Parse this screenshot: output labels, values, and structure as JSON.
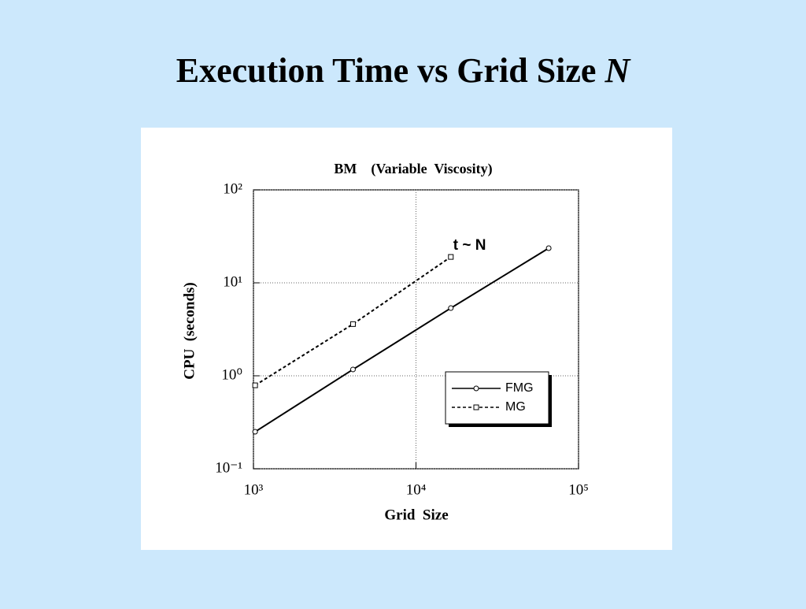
{
  "slide": {
    "title_parts": [
      "Execution Time vs Grid Size",
      "N"
    ]
  },
  "chart_data": {
    "type": "line",
    "title": "BM    (Variable  Viscosity)",
    "x_label": "Grid  Size",
    "y_label": "CPU  (seconds)",
    "annotation": "t ~ N",
    "x_scale": "log",
    "y_scale": "log",
    "grid": true,
    "legend": "lower right",
    "xlim": [
      1000,
      100000
    ],
    "xticks": [
      {
        "value": 1000,
        "label": "10³"
      },
      {
        "value": 10000,
        "label": "10⁴"
      },
      {
        "value": 100000,
        "label": "10⁵"
      }
    ],
    "ylim": [
      0.1,
      100
    ],
    "yticks": [
      {
        "value": 0.1,
        "label": "10⁻¹"
      },
      {
        "value": 1,
        "label": "10⁰"
      },
      {
        "value": 10,
        "label": "10¹"
      },
      {
        "value": 100,
        "label": "10²"
      }
    ],
    "series": [
      {
        "name": "FMG",
        "color": "#000000",
        "marker": "circle",
        "linestyle": "solid",
        "x": [
          1024,
          4096,
          16384,
          65536
        ],
        "values": [
          0.25,
          1.17,
          5.35,
          23.6
        ]
      },
      {
        "name": "MG",
        "color": "#000000",
        "marker": "square",
        "linestyle": "dashed",
        "x": [
          1024,
          4096,
          16384
        ],
        "values": [
          0.79,
          3.6,
          19
        ]
      }
    ]
  }
}
